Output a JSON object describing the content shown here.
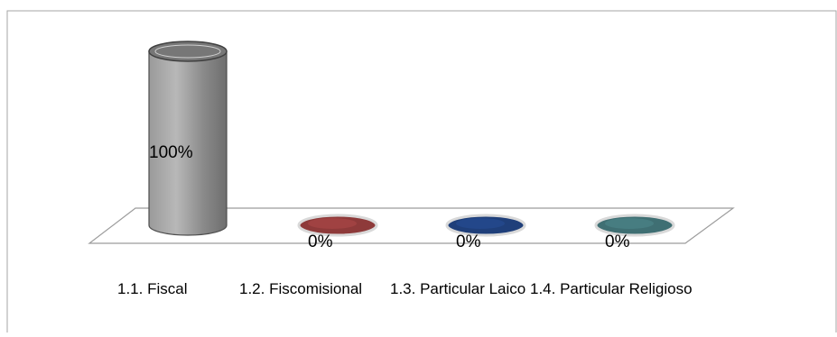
{
  "chart_data": {
    "type": "bar",
    "style": "3d-cylinder",
    "categories": [
      "1.1. Fiscal",
      "1.2. Fiscomisional",
      "1.3. Particular Laico",
      "1.4. Particular  Religioso"
    ],
    "values": [
      100,
      0,
      0,
      0
    ],
    "data_labels": [
      "100%",
      "0%",
      "0%",
      "0%"
    ],
    "unit": "%",
    "ylim": [
      0,
      100
    ],
    "grid": false,
    "legend": "none",
    "title": "",
    "xlabel": "",
    "ylabel": "",
    "colors": [
      "#8c8c8c",
      "#8e3a3a",
      "#1f3f7a",
      "#3f6f73"
    ]
  }
}
